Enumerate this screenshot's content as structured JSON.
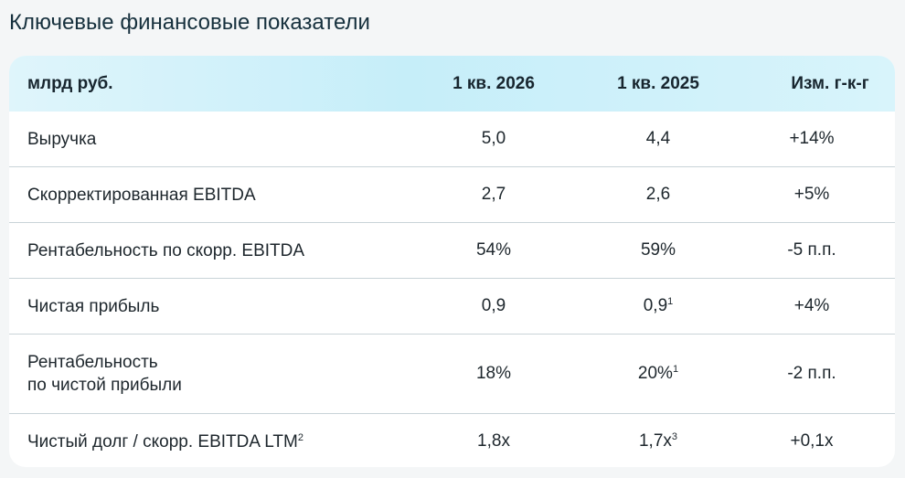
{
  "title": "Ключевые финансовые показатели",
  "table": {
    "headers": [
      "млрд руб.",
      "1 кв. 2026",
      "1 кв. 2025",
      "Изм. г-к-г"
    ],
    "rows": [
      {
        "label": "Выручка",
        "label2": "",
        "v2026": "5,0",
        "v2025": "4,4",
        "v2025_note": "",
        "change": "+14%"
      },
      {
        "label": "Скорректированная EBITDA",
        "label2": "",
        "v2026": "2,7",
        "v2025": "2,6",
        "v2025_note": "",
        "change": "+5%"
      },
      {
        "label": "Рентабельность по скорр. EBITDA",
        "label2": "",
        "v2026": "54%",
        "v2025": "59%",
        "v2025_note": "",
        "change": "-5 п.п."
      },
      {
        "label": "Чистая прибыль",
        "label2": "",
        "v2026": "0,9",
        "v2025": "0,9",
        "v2025_note": "1",
        "change": "+4%"
      },
      {
        "label": "Рентабельность",
        "label2": "по чистой прибыли",
        "v2026": "18%",
        "v2025": "20%",
        "v2025_note": "1",
        "change": "-2 п.п."
      },
      {
        "label": "Чистый долг / скорр. EBITDA LTM",
        "label_note": "2",
        "label2": "",
        "v2026": "1,8x",
        "v2025": "1,7x",
        "v2025_note": "3",
        "change": "+0,1x"
      }
    ]
  }
}
